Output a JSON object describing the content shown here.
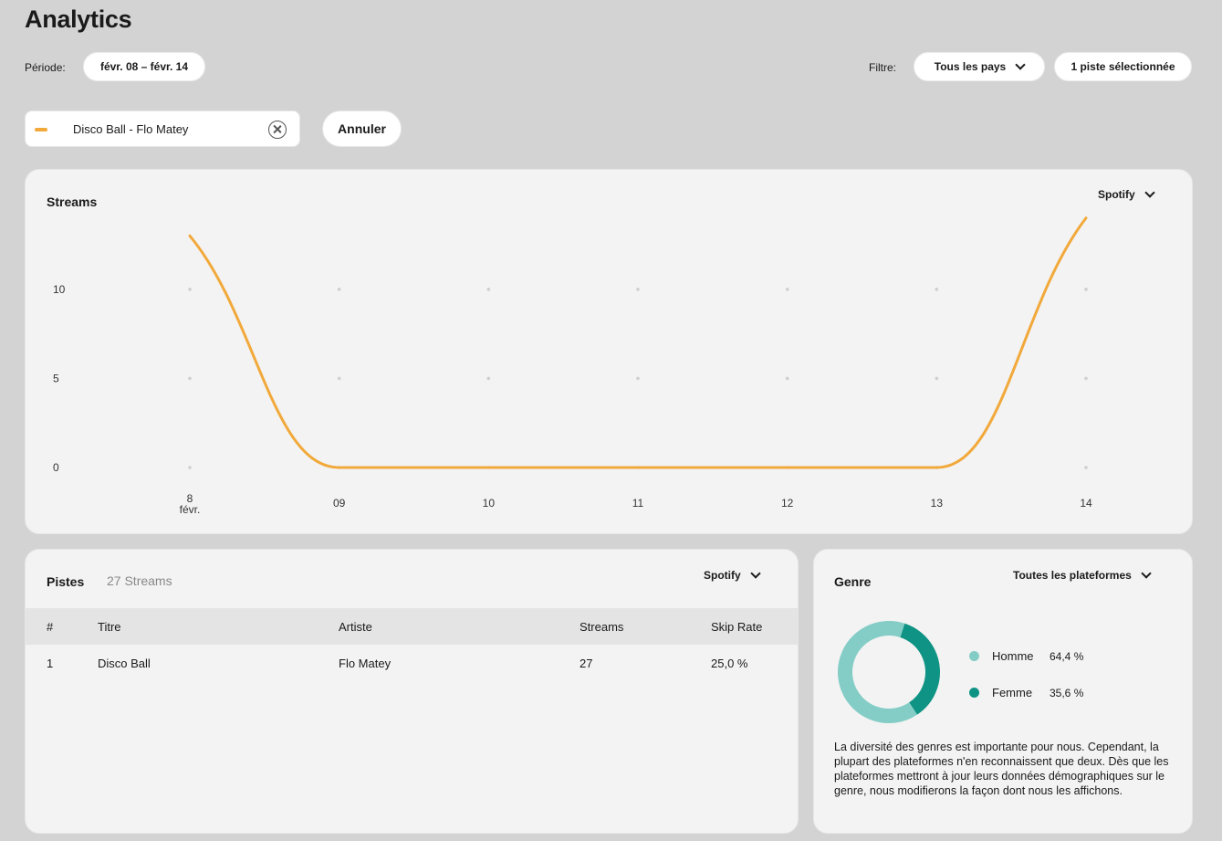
{
  "page": {
    "title": "Analytics"
  },
  "toolbar": {
    "period_label": "Période:",
    "period_value": "févr. 08 – févr. 14",
    "filter_label": "Filtre:",
    "country_filter": "Tous les pays",
    "track_filter": "1 piste sélectionnée"
  },
  "selection": {
    "track_chip": "Disco Ball - Flo Matey",
    "cancel_label": "Annuler"
  },
  "streams_card": {
    "title": "Streams",
    "platform": "Spotify"
  },
  "chart_data": {
    "type": "line",
    "x": [
      "8\nfévr.",
      "09",
      "10",
      "11",
      "12",
      "13",
      "14"
    ],
    "x_ticks": [
      {
        "top": "8",
        "bottom": "févr."
      },
      {
        "top": "09",
        "bottom": ""
      },
      {
        "top": "10",
        "bottom": ""
      },
      {
        "top": "11",
        "bottom": ""
      },
      {
        "top": "12",
        "bottom": ""
      },
      {
        "top": "13",
        "bottom": ""
      },
      {
        "top": "14",
        "bottom": ""
      }
    ],
    "y_ticks": [
      "0",
      "5",
      "10"
    ],
    "ylim": [
      0,
      14.5
    ],
    "series": [
      {
        "values": [
          13,
          0,
          0,
          0,
          0,
          0,
          14
        ],
        "color": "#f2a93b"
      }
    ],
    "grid": "dots",
    "legend": "none"
  },
  "tracks_card": {
    "title": "Pistes",
    "total": "27 Streams",
    "platform": "Spotify",
    "columns": [
      "#",
      "Titre",
      "Artiste",
      "Streams",
      "Skip Rate"
    ],
    "rows": [
      [
        "1",
        "Disco Ball",
        "Flo Matey",
        "27",
        "25,0 %"
      ]
    ]
  },
  "gender_card": {
    "title": "Genre",
    "platform": "Toutes les plateformes",
    "segments": [
      {
        "name": "Homme",
        "label": "64,4 %",
        "value": 64.4,
        "color": "#84cdc6"
      },
      {
        "name": "Femme",
        "label": "35,6 %",
        "value": 35.6,
        "color": "#0f9384"
      }
    ],
    "note": "La diversité des genres est importante pour nous. Cependant, la plupart des plateformes n'en reconnaissent que deux. Dès que les plateformes mettront à jour leurs données démographiques sur le genre, nous modifierons la façon dont nous les affichons."
  }
}
